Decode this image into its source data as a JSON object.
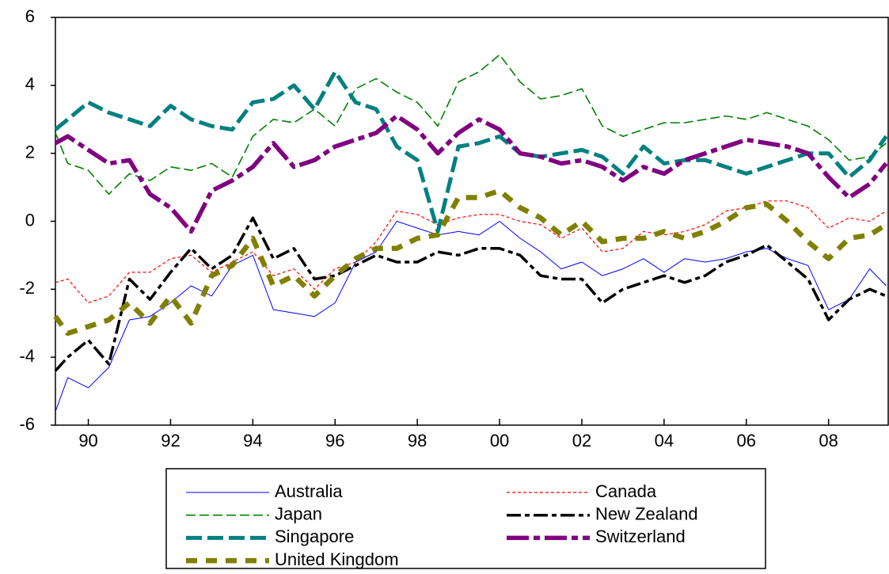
{
  "chart_data": {
    "type": "line",
    "x": [
      1989.2,
      1989.5,
      1990,
      1990.5,
      1991,
      1991.5,
      1992,
      1992.5,
      1993,
      1993.5,
      1994,
      1994.5,
      1995,
      1995.5,
      1996,
      1996.5,
      1997,
      1997.5,
      1998,
      1998.5,
      1999,
      1999.5,
      2000,
      2000.5,
      2001,
      2001.5,
      2002,
      2002.5,
      2003,
      2003.5,
      2004,
      2004.5,
      2005,
      2005.5,
      2006,
      2006.5,
      2007,
      2007.5,
      2008,
      2008.5,
      2009,
      2009.4
    ],
    "xlim": [
      1989.2,
      2009.45
    ],
    "xticks": [
      {
        "value": 1990,
        "label": "90"
      },
      {
        "value": 1992,
        "label": "92"
      },
      {
        "value": 1994,
        "label": "94"
      },
      {
        "value": 1996,
        "label": "96"
      },
      {
        "value": 1998,
        "label": "98"
      },
      {
        "value": 2000,
        "label": "00"
      },
      {
        "value": 2002,
        "label": "02"
      },
      {
        "value": 2004,
        "label": "04"
      },
      {
        "value": 2006,
        "label": "06"
      },
      {
        "value": 2008,
        "label": "08"
      }
    ],
    "ylim": [
      -6,
      6
    ],
    "yticks": [
      -6,
      -4,
      -2,
      0,
      2,
      4,
      6
    ],
    "series": [
      {
        "name": "Australia",
        "color": "#0000ff",
        "values": [
          -5.6,
          -4.6,
          -4.9,
          -4.3,
          -2.9,
          -2.8,
          -2.4,
          -1.9,
          -2.2,
          -1.3,
          -1.0,
          -2.6,
          -2.7,
          -2.8,
          -2.4,
          -1.2,
          -0.9,
          0.0,
          -0.2,
          -0.4,
          -0.3,
          -0.4,
          0.0,
          -0.5,
          -0.9,
          -1.4,
          -1.2,
          -1.6,
          -1.4,
          -1.1,
          -1.5,
          -1.1,
          -1.2,
          -1.1,
          -0.9,
          -0.8,
          -1.1,
          -1.3,
          -2.6,
          -2.3,
          -1.4,
          -1.9
        ]
      },
      {
        "name": "Canada",
        "color": "#ff0000",
        "values": [
          -1.8,
          -1.7,
          -2.4,
          -2.2,
          -1.5,
          -1.5,
          -1.1,
          -1.0,
          -1.5,
          -1.2,
          -0.9,
          -1.6,
          -1.4,
          -2.0,
          -1.4,
          -1.2,
          -0.6,
          0.3,
          0.2,
          -0.1,
          0.1,
          0.2,
          0.2,
          0.0,
          -0.1,
          -0.5,
          -0.2,
          -0.9,
          -0.8,
          -0.3,
          -0.4,
          -0.3,
          -0.1,
          0.3,
          0.4,
          0.6,
          0.6,
          0.4,
          -0.2,
          0.1,
          0.0,
          0.3
        ]
      },
      {
        "name": "Japan",
        "color": "#008000",
        "values": [
          2.6,
          1.7,
          1.5,
          0.8,
          1.4,
          1.2,
          1.6,
          1.5,
          1.7,
          1.3,
          2.5,
          3.0,
          2.9,
          3.3,
          2.8,
          3.9,
          4.2,
          3.8,
          3.5,
          2.8,
          4.1,
          4.4,
          4.9,
          4.1,
          3.6,
          3.7,
          3.9,
          2.8,
          2.5,
          2.7,
          2.9,
          2.9,
          3.0,
          3.1,
          3.0,
          3.2,
          3.0,
          2.8,
          2.4,
          1.8,
          1.9,
          2.3
        ]
      },
      {
        "name": "New Zealand",
        "color": "#000000",
        "values": [
          -4.4,
          -4.0,
          -3.5,
          -4.2,
          -1.7,
          -2.3,
          -1.5,
          -0.8,
          -1.4,
          -1.0,
          0.1,
          -1.1,
          -0.8,
          -1.7,
          -1.6,
          -1.3,
          -1.0,
          -1.2,
          -1.2,
          -0.9,
          -1.0,
          -0.8,
          -0.8,
          -1.0,
          -1.6,
          -1.7,
          -1.7,
          -2.4,
          -2.0,
          -1.8,
          -1.6,
          -1.8,
          -1.6,
          -1.2,
          -1.0,
          -0.7,
          -1.2,
          -1.7,
          -2.9,
          -2.3,
          -2.0,
          -2.2
        ]
      },
      {
        "name": "Singapore",
        "color": "#008080",
        "values": [
          2.7,
          3.0,
          3.5,
          3.2,
          3.0,
          2.8,
          3.4,
          3.0,
          2.8,
          2.7,
          3.5,
          3.6,
          4.0,
          3.3,
          4.4,
          3.5,
          3.3,
          2.2,
          1.8,
          -0.3,
          2.2,
          2.3,
          2.5,
          2.0,
          1.9,
          2.0,
          2.1,
          1.9,
          1.4,
          2.2,
          1.7,
          1.8,
          1.8,
          1.6,
          1.4,
          1.6,
          1.8,
          2.0,
          2.0,
          1.3,
          1.8,
          2.5
        ]
      },
      {
        "name": "Switzerland",
        "color": "#800080",
        "values": [
          2.3,
          2.5,
          2.1,
          1.7,
          1.8,
          0.8,
          0.4,
          -0.3,
          0.9,
          1.2,
          1.6,
          2.3,
          1.6,
          1.8,
          2.2,
          2.4,
          2.6,
          3.1,
          2.7,
          2.0,
          2.6,
          3.0,
          2.7,
          2.0,
          1.9,
          1.7,
          1.8,
          1.6,
          1.2,
          1.6,
          1.4,
          1.8,
          2.0,
          2.2,
          2.4,
          2.3,
          2.2,
          2.0,
          1.3,
          0.7,
          1.1,
          1.7
        ]
      },
      {
        "name": "United Kingdom",
        "color": "#808000",
        "values": [
          -2.8,
          -3.3,
          -3.1,
          -2.9,
          -2.4,
          -3.0,
          -2.2,
          -3.0,
          -1.6,
          -1.3,
          -0.5,
          -1.9,
          -1.6,
          -2.2,
          -1.6,
          -1.1,
          -0.8,
          -0.8,
          -0.5,
          -0.4,
          0.7,
          0.7,
          0.9,
          0.4,
          0.1,
          -0.4,
          0.0,
          -0.6,
          -0.5,
          -0.5,
          -0.3,
          -0.5,
          -0.3,
          0.0,
          0.4,
          0.5,
          0.0,
          -0.6,
          -1.1,
          -0.5,
          -0.4,
          -0.1
        ]
      }
    ]
  }
}
